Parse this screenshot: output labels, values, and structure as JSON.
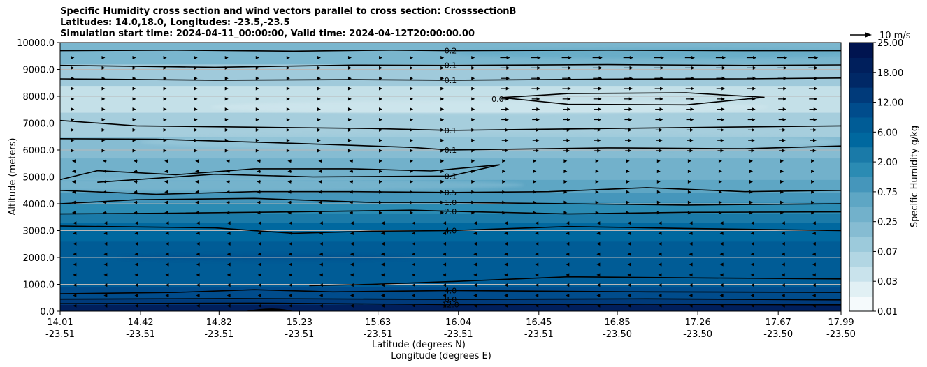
{
  "chart_data": {
    "type": "contour",
    "title_lines": [
      "Specific Humidity cross section and wind vectors parallel to cross section: CrosssectionB",
      "Latitudes: 14.0,18.0, Longitudes: -23.5,-23.5",
      "Simulation start time: 2024-04-11_00:00:00, Valid time: 2024-04-12T20:00:00.00"
    ],
    "ylabel": "Altitude (meters)",
    "xlabel_lat": "Latitude (degrees N)",
    "xlabel_lon": "Longitude (degrees E)",
    "ylim": [
      0,
      10000
    ],
    "y_ticks": [
      "0.0",
      "1000.0",
      "2000.0",
      "3000.0",
      "4000.0",
      "5000.0",
      "6000.0",
      "7000.0",
      "8000.0",
      "9000.0",
      "10000.0"
    ],
    "x_ticks": [
      {
        "lat": "14.01",
        "lon": "-23.51"
      },
      {
        "lat": "14.42",
        "lon": "-23.51"
      },
      {
        "lat": "14.82",
        "lon": "-23.51"
      },
      {
        "lat": "15.23",
        "lon": "-23.51"
      },
      {
        "lat": "15.63",
        "lon": "-23.51"
      },
      {
        "lat": "16.04",
        "lon": "-23.51"
      },
      {
        "lat": "16.45",
        "lon": "-23.51"
      },
      {
        "lat": "16.85",
        "lon": "-23.50"
      },
      {
        "lat": "17.26",
        "lon": "-23.50"
      },
      {
        "lat": "17.67",
        "lon": "-23.50"
      },
      {
        "lat": "17.99",
        "lon": "-23.50"
      }
    ],
    "colorbar": {
      "label": "Specific Humidity g/kg",
      "ticks": [
        "0.01",
        "0.03",
        "0.07",
        "0.25",
        "0.75",
        "2.00",
        "6.00",
        "12.00",
        "18.00",
        "25.00"
      ]
    },
    "quiver_key": "10 m/s",
    "contours": [
      {
        "level": "0.2",
        "label": "0.2",
        "lat": 16.0,
        "alt": 9700
      },
      {
        "level": "0.1",
        "label": "0.1",
        "lat": 16.0,
        "alt": 9150
      },
      {
        "level": "0.1",
        "label": "0.1",
        "lat": 16.0,
        "alt": 8600
      },
      {
        "level": "0.0",
        "label": "0.0",
        "lat": 16.24,
        "alt": 7900
      },
      {
        "level": "0.1",
        "label": "0.1",
        "lat": 16.0,
        "alt": 6730
      },
      {
        "level": "0.1",
        "label": "0.1",
        "lat": 16.0,
        "alt": 6000
      },
      {
        "level": "0.1",
        "label": "0.1",
        "lat": 16.0,
        "alt": 5030
      },
      {
        "level": "0.5",
        "label": "0.5",
        "lat": 16.0,
        "alt": 4420
      },
      {
        "level": "1.0",
        "label": "1.0",
        "lat": 16.0,
        "alt": 4050
      },
      {
        "level": "2.0",
        "label": "2.0",
        "lat": 16.0,
        "alt": 3720
      },
      {
        "level": "4.0",
        "label": "4.0",
        "lat": 16.0,
        "alt": 3000
      },
      {
        "level": "4.0",
        "label": "4.0",
        "lat": 16.0,
        "alt": 770
      },
      {
        "level": "8.0",
        "label": "8.0",
        "lat": 16.0,
        "alt": 440
      },
      {
        "level": "12.0",
        "label": "12.0",
        "lat": 16.0,
        "alt": 250
      }
    ],
    "wind_summary": "Westerly flow ~5-10 m/s above 6 km north of 16.2N, easterly 3-6 km in the south, light easterly in lowest 3 km"
  }
}
